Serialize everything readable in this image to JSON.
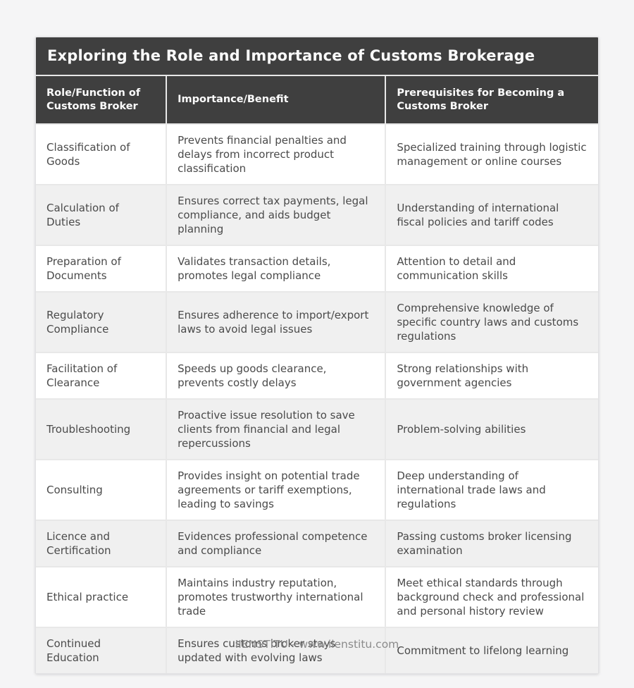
{
  "page": {
    "title": "Exploring the Role and Importance of Customs Brokerage",
    "footer": "IIENSTITU - www.iienstitu.com"
  },
  "table": {
    "columns": [
      "Role/Function of Customs Broker",
      "Importance/Benefit",
      "Prerequisites for Becoming a Customs Broker"
    ],
    "rows": [
      {
        "role": "Classification of Goods",
        "benefit": "Prevents financial penalties and delays from incorrect product classification",
        "prerequisite": "Specialized training through logistic management or online courses"
      },
      {
        "role": "Calculation of Duties",
        "benefit": "Ensures correct tax payments, legal compliance, and aids budget planning",
        "prerequisite": "Understanding of international fiscal policies and tariff codes"
      },
      {
        "role": "Preparation of Documents",
        "benefit": "Validates transaction details, promotes legal compliance",
        "prerequisite": "Attention to detail and communication skills"
      },
      {
        "role": "Regulatory Compliance",
        "benefit": "Ensures adherence to import/export laws to avoid legal issues",
        "prerequisite": "Comprehensive knowledge of specific country laws and customs regulations"
      },
      {
        "role": "Facilitation of Clearance",
        "benefit": "Speeds up goods clearance, prevents costly delays",
        "prerequisite": "Strong relationships with government agencies"
      },
      {
        "role": "Troubleshooting",
        "benefit": "Proactive issue resolution to save clients from financial and legal repercussions",
        "prerequisite": "Problem-solving abilities"
      },
      {
        "role": "Consulting",
        "benefit": "Provides insight on potential trade agreements or tariff exemptions, leading to savings",
        "prerequisite": "Deep understanding of international trade laws and regulations"
      },
      {
        "role": "Licence and Certification",
        "benefit": "Evidences professional competence and compliance",
        "prerequisite": "Passing customs broker licensing examination"
      },
      {
        "role": "Ethical practice",
        "benefit": "Maintains industry reputation, promotes trustworthy international trade",
        "prerequisite": "Meet ethical standards through background check and professional and personal history review"
      },
      {
        "role": "Continued Education",
        "benefit": "Ensures customs broker stays updated with evolving laws",
        "prerequisite": "Commitment to lifelong learning"
      }
    ]
  },
  "colors": {
    "header_bg": "#3f3f3f",
    "header_text": "#fcfcfc",
    "row_alt_bg": "#f0f0f0",
    "row_bg": "#ffffff",
    "cell_border": "#e8e8e8",
    "body_text": "#4a4a4a",
    "footer_text": "#8b8b8b",
    "page_bg": "#f5f5f6"
  }
}
